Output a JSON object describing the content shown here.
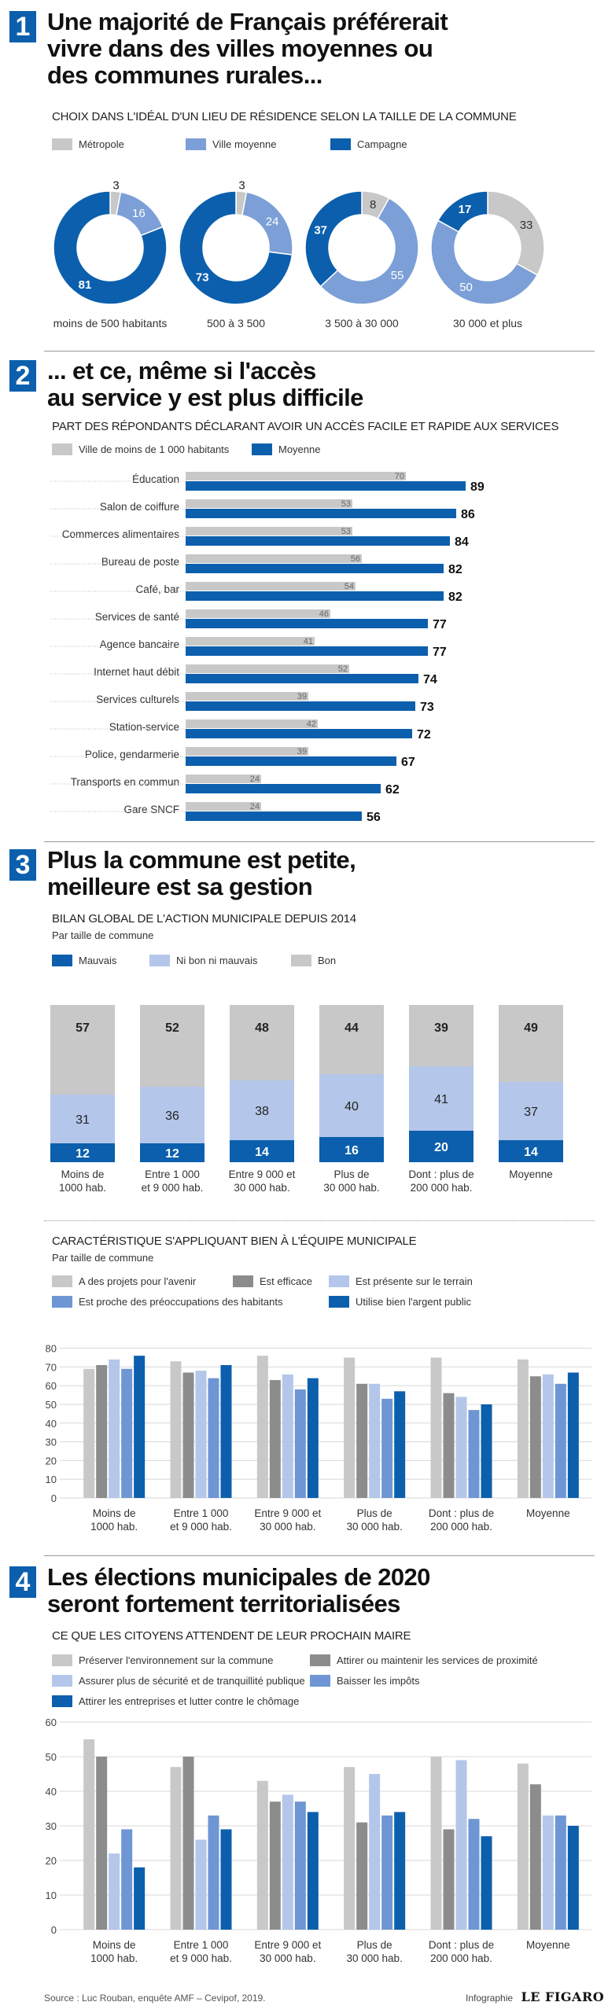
{
  "colors": {
    "light": "#c8c8c8",
    "mid": "#7b9fd6",
    "dark": "#0b5fad",
    "dgray": "#8c8c8c",
    "lblue": "#b4c6ea",
    "sblue": "#6e96d4"
  },
  "sec1": {
    "num": "1",
    "title_l1": "Une majorité de Français préférerait",
    "title_l2": "vivre dans des villes moyennes ou",
    "title_l3": "des communes rurales...",
    "subtitle": "CHOIX DANS L'IDÉAL D'UN LIEU DE RÉSIDENCE SELON LA TAILLE DE LA COMMUNE",
    "legend": [
      "Métropole",
      "Ville moyenne",
      "Campagne"
    ]
  },
  "sec2": {
    "num": "2",
    "title_l1": "... et ce, même si l'accès",
    "title_l2": "au service y est plus difficile",
    "subtitle": "PART DES RÉPONDANTS DÉCLARANT AVOIR UN ACCÈS  FACILE ET RAPIDE AUX SERVICES",
    "legend": [
      "Ville de moins de 1 000 habitants",
      "Moyenne"
    ]
  },
  "sec3": {
    "num": "3",
    "title_l1": "Plus la commune est petite,",
    "title_l2": "meilleure est sa gestion",
    "subtitle": "BILAN GLOBAL DE L'ACTION MUNICIPALE DEPUIS 2014",
    "note": "Par taille de commune",
    "legend": [
      "Mauvais",
      "Ni bon ni mauvais",
      "Bon"
    ],
    "subtitle2": "CARACTÉRISTIQUE S'APPLIQUANT BIEN À L'ÉQUIPE MUNICIPALE",
    "note2": "Par taille de commune",
    "legend2": [
      "A des projets pour l'avenir",
      "Est efficace",
      "Est présente sur le terrain",
      "Est proche des préoccupations des habitants",
      "Utilise bien l'argent public"
    ]
  },
  "sec4": {
    "num": "4",
    "title_l1": "Les élections municipales de 2020",
    "title_l2": "seront fortement territorialisées",
    "subtitle": "CE QUE LES CITOYENS ATTENDENT DE LEUR PROCHAIN MAIRE",
    "legend": [
      "Préserver l'environnement sur la commune",
      "Attirer ou maintenir les services de proximité",
      "Assurer plus de sécurité et de tranquillité publique",
      "Baisser les impôts",
      "Attirer les entreprises et lutter contre le chômage"
    ]
  },
  "footer": {
    "source": "Source : Luc Rouban, enquête AMF – Cevipof, 2019.",
    "credit_prefix": "Infographie",
    "credit_brand": "LE FIGARO"
  },
  "chart_data": [
    {
      "type": "pie",
      "subtype": "donut",
      "series_names": [
        "Métropole",
        "Ville moyenne",
        "Campagne"
      ],
      "groups": [
        {
          "label": "moins de 500 habitants",
          "values": [
            3,
            16,
            81
          ]
        },
        {
          "label": "500 à 3 500",
          "values": [
            3,
            24,
            73
          ]
        },
        {
          "label": "3 500 à 30 000",
          "values": [
            8,
            55,
            37
          ]
        },
        {
          "label": "30 000 et plus",
          "values": [
            33,
            50,
            17
          ]
        }
      ]
    },
    {
      "type": "bar",
      "orientation": "horizontal",
      "categories": [
        "Éducation",
        "Salon de coiffure",
        "Commerces alimentaires",
        "Bureau de poste",
        "Café, bar",
        "Services de santé",
        "Agence bancaire",
        "Internet haut débit",
        "Services culturels",
        "Station-service",
        "Police, gendarmerie",
        "Transports en commun",
        "Gare SNCF"
      ],
      "series": [
        {
          "name": "Ville de moins de 1 000 habitants",
          "values": [
            70,
            53,
            53,
            56,
            54,
            46,
            41,
            52,
            39,
            42,
            39,
            24,
            24
          ]
        },
        {
          "name": "Moyenne",
          "values": [
            89,
            86,
            84,
            82,
            82,
            77,
            77,
            74,
            73,
            72,
            67,
            62,
            56
          ]
        }
      ],
      "xlim": [
        0,
        100
      ]
    },
    {
      "type": "bar",
      "stacked": true,
      "categories": [
        "Moins de 1000 hab.",
        "Entre 1 000 et 9 000 hab.",
        "Entre 9 000 et 30 000 hab.",
        "Plus de 30 000 hab.",
        "Dont : plus de 200 000 hab.",
        "Moyenne"
      ],
      "series": [
        {
          "name": "Mauvais",
          "values": [
            12,
            12,
            14,
            16,
            20,
            14
          ]
        },
        {
          "name": "Ni bon ni mauvais",
          "values": [
            31,
            36,
            38,
            40,
            41,
            37
          ]
        },
        {
          "name": "Bon",
          "values": [
            57,
            52,
            48,
            44,
            39,
            49
          ]
        }
      ]
    },
    {
      "type": "bar",
      "categories": [
        "Moins de 1000 hab.",
        "Entre 1 000 et 9 000 hab.",
        "Entre 9 000 et 30 000 hab.",
        "Plus de 30 000 hab.",
        "Dont : plus de 200 000 hab.",
        "Moyenne"
      ],
      "series": [
        {
          "name": "A des projets pour l'avenir",
          "values": [
            69,
            73,
            76,
            75,
            75,
            74
          ]
        },
        {
          "name": "Est efficace",
          "values": [
            71,
            67,
            63,
            61,
            56,
            65
          ]
        },
        {
          "name": "Est présente sur le terrain",
          "values": [
            74,
            68,
            66,
            61,
            54,
            66
          ]
        },
        {
          "name": "Est proche des préoccupations des habitants",
          "values": [
            69,
            64,
            58,
            53,
            47,
            61
          ]
        },
        {
          "name": "Utilise bien l'argent public",
          "values": [
            76,
            71,
            64,
            57,
            50,
            67
          ]
        }
      ],
      "ylim": [
        0,
        80
      ],
      "yticks": [
        0,
        10,
        20,
        30,
        40,
        50,
        60,
        70,
        80
      ]
    },
    {
      "type": "bar",
      "categories": [
        "Moins de 1000 hab.",
        "Entre 1 000 et 9 000 hab.",
        "Entre 9 000 et 30 000 hab.",
        "Plus de 30 000 hab.",
        "Dont : plus de 200 000 hab.",
        "Moyenne"
      ],
      "series": [
        {
          "name": "Préserver l'environnement sur la commune",
          "values": [
            55,
            47,
            43,
            47,
            50,
            48
          ]
        },
        {
          "name": "Attirer ou maintenir les services de proximité",
          "values": [
            50,
            50,
            37,
            31,
            29,
            42
          ]
        },
        {
          "name": "Assurer plus de sécurité et de tranquillité publique",
          "values": [
            22,
            26,
            39,
            45,
            49,
            33
          ]
        },
        {
          "name": "Baisser les impôts",
          "values": [
            29,
            33,
            37,
            33,
            32,
            33
          ]
        },
        {
          "name": "Attirer les entreprises et lutter contre le chômage",
          "values": [
            18,
            29,
            34,
            34,
            27,
            30
          ]
        }
      ],
      "ylim": [
        0,
        60
      ],
      "yticks": [
        0,
        10,
        20,
        30,
        40,
        50,
        60
      ]
    }
  ]
}
